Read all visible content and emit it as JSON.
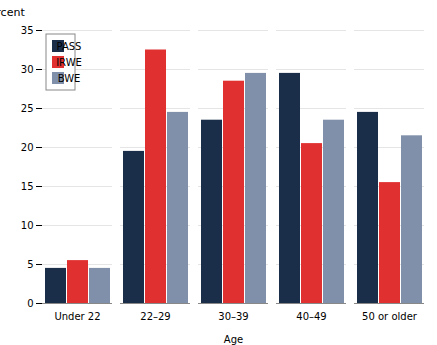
{
  "chart_data": {
    "type": "bar",
    "xlabel": "Age",
    "ylabel": "Percent",
    "categories": [
      "Under 22",
      "22–29",
      "30–39",
      "40–49",
      "50 or older"
    ],
    "series": [
      {
        "name": "PASS",
        "color": "#1a2e4a",
        "values": [
          4.5,
          19.5,
          23.5,
          29.5,
          24.5
        ]
      },
      {
        "name": "IRWE",
        "color": "#e03030",
        "values": [
          5.5,
          32.5,
          28.5,
          20.5,
          15.5
        ]
      },
      {
        "name": "BWE",
        "color": "#8090aa",
        "values": [
          4.5,
          24.5,
          29.5,
          23.5,
          21.5
        ]
      }
    ],
    "ylim": [
      0,
      35
    ],
    "yticks": [
      0,
      5,
      10,
      15,
      20,
      25,
      30,
      35
    ],
    "grid": true,
    "legend": "upper left"
  }
}
